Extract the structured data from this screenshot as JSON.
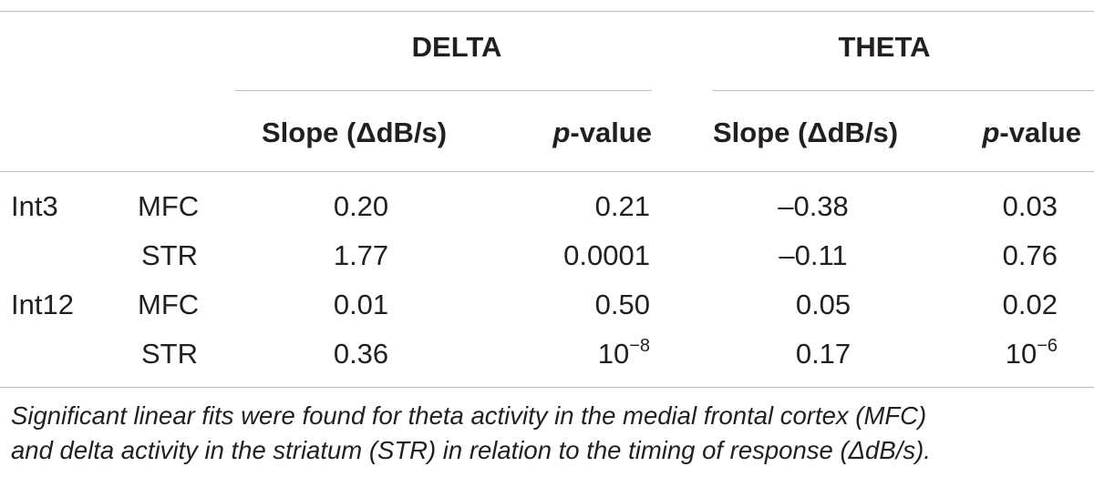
{
  "table": {
    "group_headers": [
      "DELTA",
      "THETA"
    ],
    "column_headers": [
      {
        "prefix": "Slope (ΔdB/s)",
        "italic_part": "",
        "suffix": ""
      },
      {
        "prefix": "",
        "italic_part": "p",
        "suffix": "-value"
      },
      {
        "prefix": "Slope (ΔdB/s)",
        "italic_part": "",
        "suffix": ""
      },
      {
        "prefix": "",
        "italic_part": "p",
        "suffix": "-value"
      }
    ],
    "rows": [
      {
        "group": "Int3",
        "region": "MFC",
        "delta_slope": "0.20",
        "delta_p": "0.21",
        "delta_p_exp": "",
        "theta_slope": "–0.38",
        "theta_p": "0.03",
        "theta_p_exp": ""
      },
      {
        "group": "",
        "region": "STR",
        "delta_slope": "1.77",
        "delta_p": "0.0001",
        "delta_p_exp": "",
        "theta_slope": "–0.11",
        "theta_p": "0.76",
        "theta_p_exp": ""
      },
      {
        "group": "Int12",
        "region": "MFC",
        "delta_slope": "0.01",
        "delta_p": "0.50",
        "delta_p_exp": "",
        "theta_slope": "0.05",
        "theta_p": "0.02",
        "theta_p_exp": ""
      },
      {
        "group": "",
        "region": "STR",
        "delta_slope": "0.36",
        "delta_p": "10",
        "delta_p_exp": "−8",
        "theta_slope": "0.17",
        "theta_p": "10",
        "theta_p_exp": "−6"
      }
    ]
  },
  "footnote": {
    "line1": "Significant linear fits were found for theta activity in the medial frontal cortex (MFC)",
    "line2": "and delta activity in the striatum (STR) in relation to the timing of response (ΔdB/s)."
  }
}
